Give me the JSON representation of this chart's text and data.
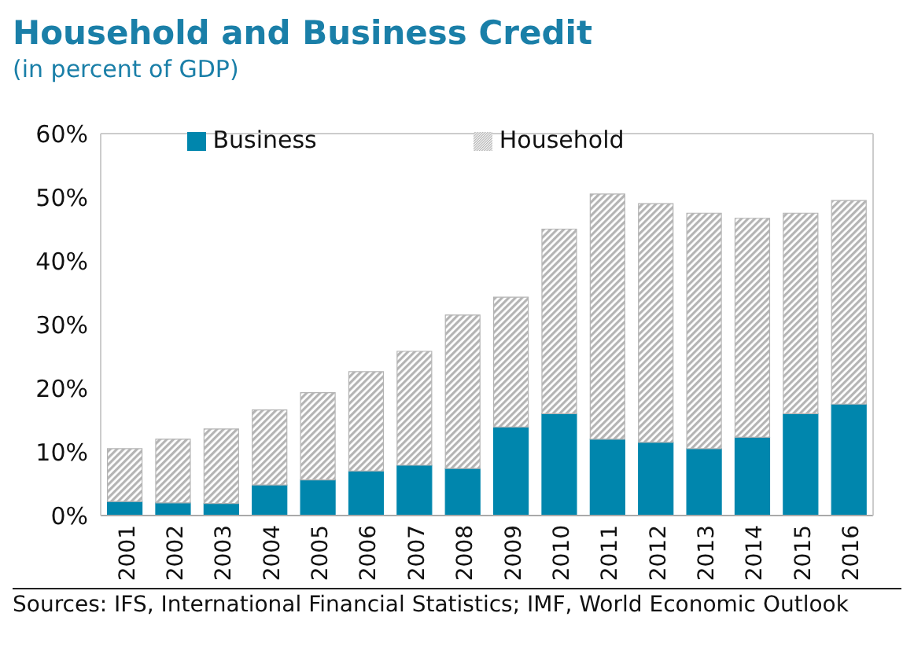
{
  "chart_data": {
    "type": "bar",
    "title": "Household and Business Credit",
    "subtitle": "(in percent of GDP)",
    "categories": [
      "2001",
      "2002",
      "2003",
      "2004",
      "2005",
      "2006",
      "2007",
      "2008",
      "2009",
      "2010",
      "2011",
      "2012",
      "2013",
      "2014",
      "2015",
      "2016"
    ],
    "series": [
      {
        "name": "Business",
        "color": "#0086ad",
        "values": [
          2.2,
          2.0,
          1.9,
          4.8,
          5.6,
          7.0,
          7.9,
          7.4,
          13.9,
          16,
          12,
          11.5,
          10.5,
          12.3,
          16,
          17.5
        ]
      },
      {
        "name": "Household",
        "color": "#b4b4b4",
        "values": [
          8.3,
          10.0,
          11.7,
          11.8,
          13.7,
          15.6,
          17.9,
          24.1,
          20.4,
          29,
          38.5,
          37.5,
          37,
          34.4,
          31.5,
          32
        ]
      }
    ],
    "stacked": true,
    "ylim": [
      0,
      60
    ],
    "yticks": [
      {
        "value": 0,
        "label": "0%"
      },
      {
        "value": 10,
        "label": "10%"
      },
      {
        "value": 20,
        "label": "20%"
      },
      {
        "value": 30,
        "label": "30%"
      },
      {
        "value": 40,
        "label": "40%"
      },
      {
        "value": 50,
        "label": "50%"
      },
      {
        "value": 60,
        "label": "60%"
      }
    ],
    "legend": "top",
    "grid": false,
    "annotations": [
      "Sources: IFS, International Financial Statistics; IMF, World Economic Outlook"
    ]
  }
}
